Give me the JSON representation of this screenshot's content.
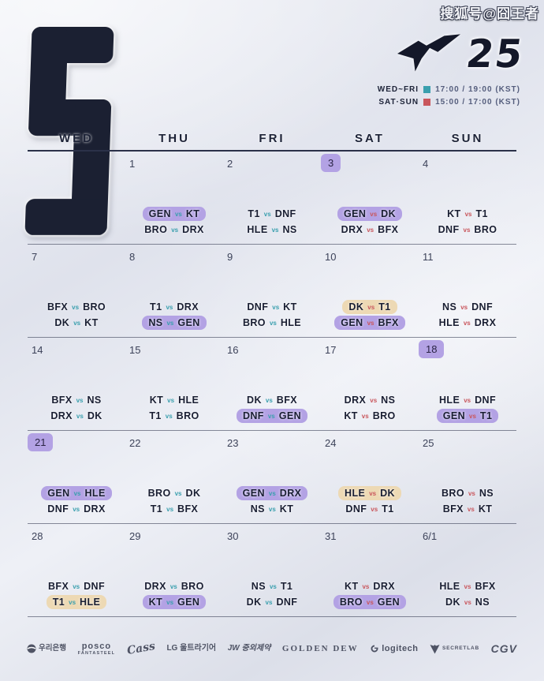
{
  "watermark": "搜狐号@囧王者",
  "month": "5",
  "logo": {
    "year": "25",
    "bird_icon": "lck-bird-icon"
  },
  "schedule": [
    {
      "days": "WED~FRI",
      "times": "17:00 / 19:00 (KST)",
      "square_color": "#3a9fae"
    },
    {
      "days": "SAT·SUN",
      "times": "15:00 / 17:00 (KST)",
      "square_color": "#c9565c"
    }
  ],
  "calendar": {
    "day_headers": [
      "WED",
      "THU",
      "FRI",
      "SAT",
      "SUN"
    ],
    "vs_label": "vs",
    "weeks": [
      {
        "days": [
          {
            "date": "",
            "date_hl": false,
            "matches": []
          },
          {
            "date": "1",
            "date_hl": false,
            "matches": [
              {
                "t1": "GEN",
                "t2": "KT",
                "hl": "purple"
              },
              {
                "t1": "BRO",
                "t2": "DRX",
                "hl": null
              }
            ]
          },
          {
            "date": "2",
            "date_hl": false,
            "matches": [
              {
                "t1": "T1",
                "t2": "DNF",
                "hl": null
              },
              {
                "t1": "HLE",
                "t2": "NS",
                "hl": null
              }
            ]
          },
          {
            "date": "3",
            "date_hl": true,
            "matches": [
              {
                "t1": "GEN",
                "t2": "DK",
                "hl": "purple"
              },
              {
                "t1": "DRX",
                "t2": "BFX",
                "hl": null
              }
            ]
          },
          {
            "date": "4",
            "date_hl": false,
            "matches": [
              {
                "t1": "KT",
                "t2": "T1",
                "hl": null
              },
              {
                "t1": "DNF",
                "t2": "BRO",
                "hl": null
              }
            ]
          }
        ]
      },
      {
        "days": [
          {
            "date": "7",
            "date_hl": false,
            "matches": [
              {
                "t1": "BFX",
                "t2": "BRO",
                "hl": null
              },
              {
                "t1": "DK",
                "t2": "KT",
                "hl": null
              }
            ]
          },
          {
            "date": "8",
            "date_hl": false,
            "matches": [
              {
                "t1": "T1",
                "t2": "DRX",
                "hl": null
              },
              {
                "t1": "NS",
                "t2": "GEN",
                "hl": "purple"
              }
            ]
          },
          {
            "date": "9",
            "date_hl": false,
            "matches": [
              {
                "t1": "DNF",
                "t2": "KT",
                "hl": null
              },
              {
                "t1": "BRO",
                "t2": "HLE",
                "hl": null
              }
            ]
          },
          {
            "date": "10",
            "date_hl": false,
            "matches": [
              {
                "t1": "DK",
                "t2": "T1",
                "hl": "orange"
              },
              {
                "t1": "GEN",
                "t2": "BFX",
                "hl": "purple"
              }
            ]
          },
          {
            "date": "11",
            "date_hl": false,
            "matches": [
              {
                "t1": "NS",
                "t2": "DNF",
                "hl": null
              },
              {
                "t1": "HLE",
                "t2": "DRX",
                "hl": null
              }
            ]
          }
        ]
      },
      {
        "days": [
          {
            "date": "14",
            "date_hl": false,
            "matches": [
              {
                "t1": "BFX",
                "t2": "NS",
                "hl": null
              },
              {
                "t1": "DRX",
                "t2": "DK",
                "hl": null
              }
            ]
          },
          {
            "date": "15",
            "date_hl": false,
            "matches": [
              {
                "t1": "KT",
                "t2": "HLE",
                "hl": null
              },
              {
                "t1": "T1",
                "t2": "BRO",
                "hl": null
              }
            ]
          },
          {
            "date": "16",
            "date_hl": false,
            "matches": [
              {
                "t1": "DK",
                "t2": "BFX",
                "hl": null
              },
              {
                "t1": "DNF",
                "t2": "GEN",
                "hl": "purple"
              }
            ]
          },
          {
            "date": "17",
            "date_hl": false,
            "matches": [
              {
                "t1": "DRX",
                "t2": "NS",
                "hl": null
              },
              {
                "t1": "KT",
                "t2": "BRO",
                "hl": null
              }
            ]
          },
          {
            "date": "18",
            "date_hl": true,
            "matches": [
              {
                "t1": "HLE",
                "t2": "DNF",
                "hl": null
              },
              {
                "t1": "GEN",
                "t2": "T1",
                "hl": "purple"
              }
            ]
          }
        ]
      },
      {
        "days": [
          {
            "date": "21",
            "date_hl": true,
            "matches": [
              {
                "t1": "GEN",
                "t2": "HLE",
                "hl": "purple"
              },
              {
                "t1": "DNF",
                "t2": "DRX",
                "hl": null
              }
            ]
          },
          {
            "date": "22",
            "date_hl": false,
            "matches": [
              {
                "t1": "BRO",
                "t2": "DK",
                "hl": null
              },
              {
                "t1": "T1",
                "t2": "BFX",
                "hl": null
              }
            ]
          },
          {
            "date": "23",
            "date_hl": false,
            "matches": [
              {
                "t1": "GEN",
                "t2": "DRX",
                "hl": "purple"
              },
              {
                "t1": "NS",
                "t2": "KT",
                "hl": null
              }
            ]
          },
          {
            "date": "24",
            "date_hl": false,
            "matches": [
              {
                "t1": "HLE",
                "t2": "DK",
                "hl": "orange"
              },
              {
                "t1": "DNF",
                "t2": "T1",
                "hl": null
              }
            ]
          },
          {
            "date": "25",
            "date_hl": false,
            "matches": [
              {
                "t1": "BRO",
                "t2": "NS",
                "hl": null
              },
              {
                "t1": "BFX",
                "t2": "KT",
                "hl": null
              }
            ]
          }
        ]
      },
      {
        "days": [
          {
            "date": "28",
            "date_hl": false,
            "matches": [
              {
                "t1": "BFX",
                "t2": "DNF",
                "hl": null
              },
              {
                "t1": "T1",
                "t2": "HLE",
                "hl": "orange"
              }
            ]
          },
          {
            "date": "29",
            "date_hl": false,
            "matches": [
              {
                "t1": "DRX",
                "t2": "BRO",
                "hl": null
              },
              {
                "t1": "KT",
                "t2": "GEN",
                "hl": "purple"
              }
            ]
          },
          {
            "date": "30",
            "date_hl": false,
            "matches": [
              {
                "t1": "NS",
                "t2": "T1",
                "hl": null
              },
              {
                "t1": "DK",
                "t2": "DNF",
                "hl": null
              }
            ]
          },
          {
            "date": "31",
            "date_hl": false,
            "matches": [
              {
                "t1": "KT",
                "t2": "DRX",
                "hl": null
              },
              {
                "t1": "BRO",
                "t2": "GEN",
                "hl": "purple"
              }
            ]
          },
          {
            "date": "6/1",
            "date_hl": false,
            "matches": [
              {
                "t1": "HLE",
                "t2": "BFX",
                "hl": null
              },
              {
                "t1": "DK",
                "t2": "NS",
                "hl": null
              }
            ]
          }
        ]
      }
    ]
  },
  "sponsors": [
    {
      "icon": "woori-bank-icon",
      "lines": [
        "우리은행"
      ]
    },
    {
      "icon": null,
      "lines": [
        "posco",
        "FANTASTEEL"
      ]
    },
    {
      "icon": null,
      "lines": [
        "Cass"
      ]
    },
    {
      "icon": null,
      "lines": [
        "LG 울트라기어"
      ]
    },
    {
      "icon": null,
      "lines": [
        "JW 중외제약"
      ]
    },
    {
      "icon": null,
      "lines": [
        "GOLDEN DEW"
      ]
    },
    {
      "icon": "logitech-g-icon",
      "lines": [
        "logitech"
      ]
    },
    {
      "icon": "secretlab-shield-icon",
      "lines": [
        "SECRETLAB"
      ]
    },
    {
      "icon": null,
      "lines": [
        "CGV"
      ]
    }
  ],
  "colors": {
    "highlight_purple": "#b3a2e4",
    "highlight_orange": "#edd9b4",
    "vs_weekday": "#3a9fae",
    "vs_weekend": "#c9565c",
    "text_navy": "#191e32"
  }
}
